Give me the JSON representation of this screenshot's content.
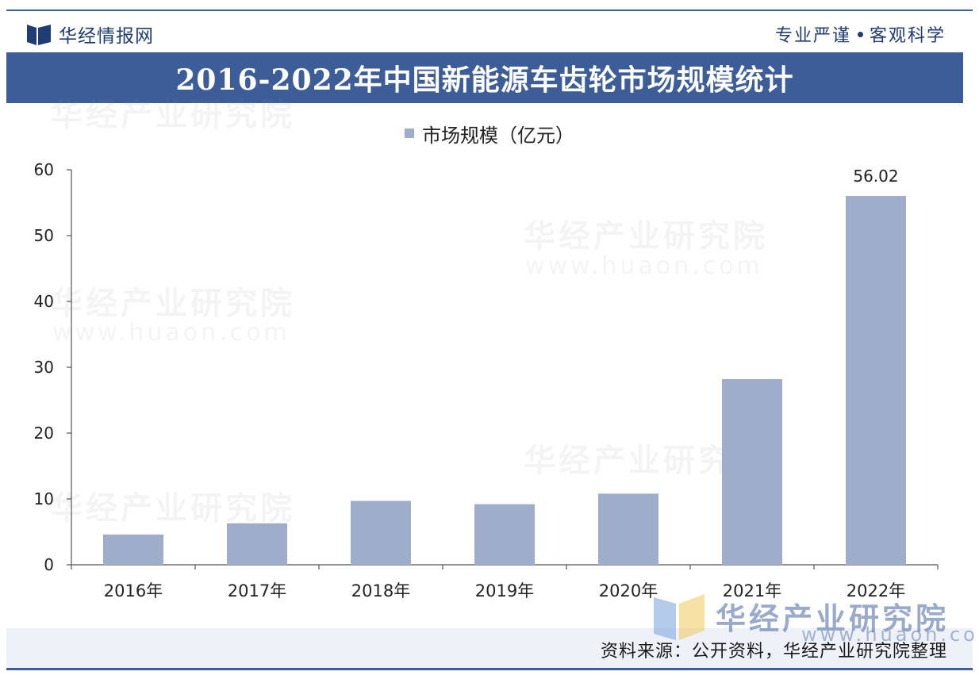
{
  "header": {
    "brand": "华经情报网",
    "tagline_left": "专业严谨",
    "tagline_right": "客观科学"
  },
  "title": "2016-2022年中国新能源车齿轮市场规模统计",
  "source": "资料来源：公开资料，华经产业研究院整理",
  "watermark": {
    "name": "华经产业研究院",
    "url": "www.huaon.com"
  },
  "colors": {
    "bar": "#9eadc9",
    "title_bg": "#3d5d98",
    "accent": "#1f3c74"
  },
  "chart_data": {
    "type": "bar",
    "categories": [
      "2016年",
      "2017年",
      "2018年",
      "2019年",
      "2020年",
      "2021年",
      "2022年"
    ],
    "series": [
      {
        "name": "市场规模（亿元）",
        "values": [
          4.6,
          6.3,
          9.7,
          9.2,
          10.8,
          28.2,
          56.02
        ]
      }
    ],
    "data_labels": [
      null,
      null,
      null,
      null,
      null,
      null,
      "56.02"
    ],
    "ylim": [
      0,
      60
    ],
    "yticks": [
      0,
      10,
      20,
      30,
      40,
      50,
      60
    ],
    "grid": false,
    "legend": "top-center"
  }
}
